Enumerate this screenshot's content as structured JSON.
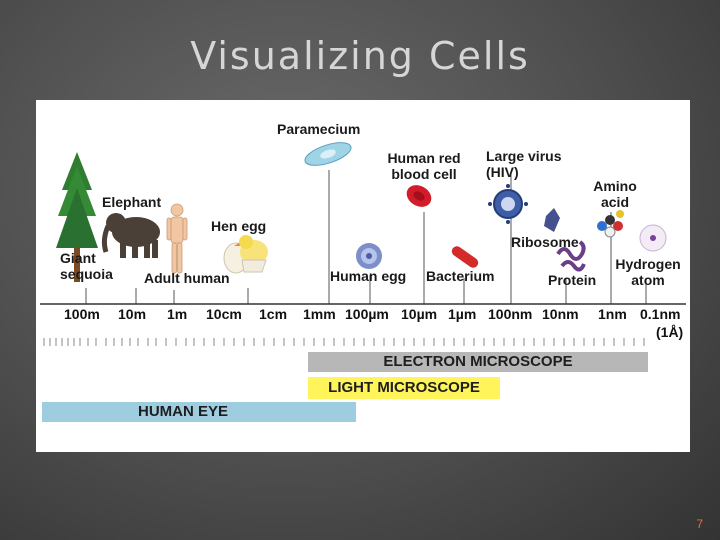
{
  "slide": {
    "title": "Visualizing Cells",
    "page_number": "7"
  },
  "organisms": {
    "paramecium": "Paramecium",
    "red_blood_cell": "Human red blood cell",
    "large_virus": "Large virus (HIV)",
    "amino_acid": "Amino acid",
    "elephant": "Elephant",
    "hen_egg": "Hen egg",
    "ribosome": "Ribosome",
    "giant_sequoia": "Giant sequoia",
    "adult_human": "Adult human",
    "human_egg": "Human egg",
    "bacterium": "Bacterium",
    "protein": "Protein",
    "hydrogen_atom": "Hydrogen atom"
  },
  "scale": {
    "ticks": [
      "100m",
      "10m",
      "1m",
      "10cm",
      "1cm",
      "1mm",
      "100µm",
      "10µm",
      "1µm",
      "100nm",
      "10nm",
      "1nm",
      "0.1nm"
    ],
    "angstrom": "(1Å)"
  },
  "ranges": {
    "electron_microscope": "ELECTRON MICROSCOPE",
    "light_microscope": "LIGHT MICROSCOPE",
    "human_eye": "HUMAN EYE"
  },
  "colors": {
    "electron_band": "#b7b7b7",
    "light_band": "#fff45a",
    "eye_band": "#9ecde0"
  }
}
